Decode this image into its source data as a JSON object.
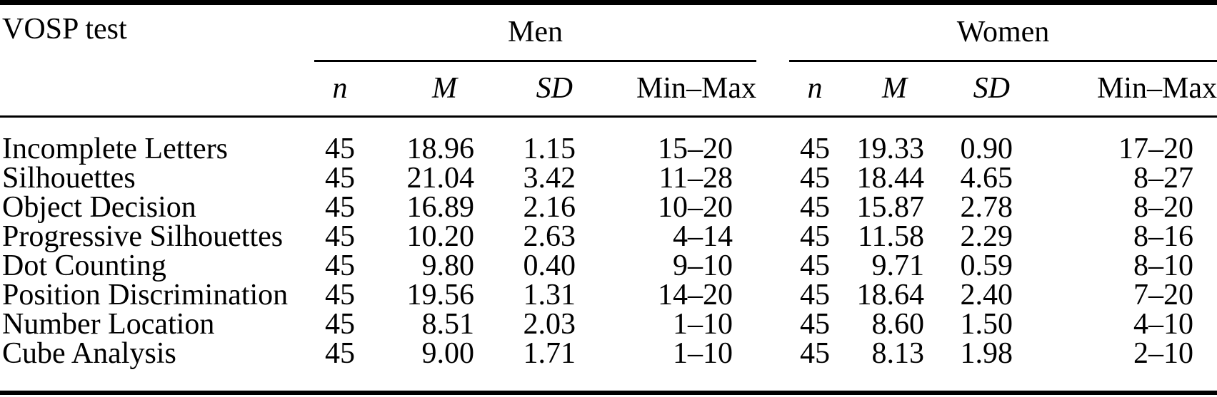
{
  "colors": {
    "background": "#ffffff",
    "text": "#000000",
    "rule": "#000000"
  },
  "table": {
    "corner_header": "VOSP test",
    "groups": [
      {
        "label": "Men",
        "sub_headers": {
          "n": "n",
          "m": "M",
          "sd": "SD",
          "minmax": "Min–Max"
        }
      },
      {
        "label": "Women",
        "sub_headers": {
          "n": "n",
          "m": "M",
          "sd": "SD",
          "minmax": "Min–Max"
        }
      }
    ],
    "rows": [
      {
        "test": "Incomplete Letters",
        "men": {
          "n": "45",
          "m": "18.96",
          "sd": "1.15",
          "minmax": "15–20"
        },
        "women": {
          "n": "45",
          "m": "19.33",
          "sd": "0.90",
          "minmax": "17–20"
        }
      },
      {
        "test": "Silhouettes",
        "men": {
          "n": "45",
          "m": "21.04",
          "sd": "3.42",
          "minmax": "11–28"
        },
        "women": {
          "n": "45",
          "m": "18.44",
          "sd": "4.65",
          "minmax": "8–27"
        }
      },
      {
        "test": "Object Decision",
        "men": {
          "n": "45",
          "m": "16.89",
          "sd": "2.16",
          "minmax": "10–20"
        },
        "women": {
          "n": "45",
          "m": "15.87",
          "sd": "2.78",
          "minmax": "8–20"
        }
      },
      {
        "test": "Progressive Silhouettes",
        "men": {
          "n": "45",
          "m": "10.20",
          "sd": "2.63",
          "minmax": "4–14"
        },
        "women": {
          "n": "45",
          "m": "11.58",
          "sd": "2.29",
          "minmax": "8–16"
        }
      },
      {
        "test": "Dot Counting",
        "men": {
          "n": "45",
          "m": "9.80",
          "sd": "0.40",
          "minmax": "9–10"
        },
        "women": {
          "n": "45",
          "m": "9.71",
          "sd": "0.59",
          "minmax": "8–10"
        }
      },
      {
        "test": "Position Discrimination",
        "men": {
          "n": "45",
          "m": "19.56",
          "sd": "1.31",
          "minmax": "14–20"
        },
        "women": {
          "n": "45",
          "m": "18.64",
          "sd": "2.40",
          "minmax": "7–20"
        }
      },
      {
        "test": "Number Location",
        "men": {
          "n": "45",
          "m": "8.51",
          "sd": "2.03",
          "minmax": "1–10"
        },
        "women": {
          "n": "45",
          "m": "8.60",
          "sd": "1.50",
          "minmax": "4–10"
        }
      },
      {
        "test": "Cube Analysis",
        "men": {
          "n": "45",
          "m": "9.00",
          "sd": "1.71",
          "minmax": "1–10"
        },
        "women": {
          "n": "45",
          "m": "8.13",
          "sd": "1.98",
          "minmax": "2–10"
        }
      }
    ]
  }
}
